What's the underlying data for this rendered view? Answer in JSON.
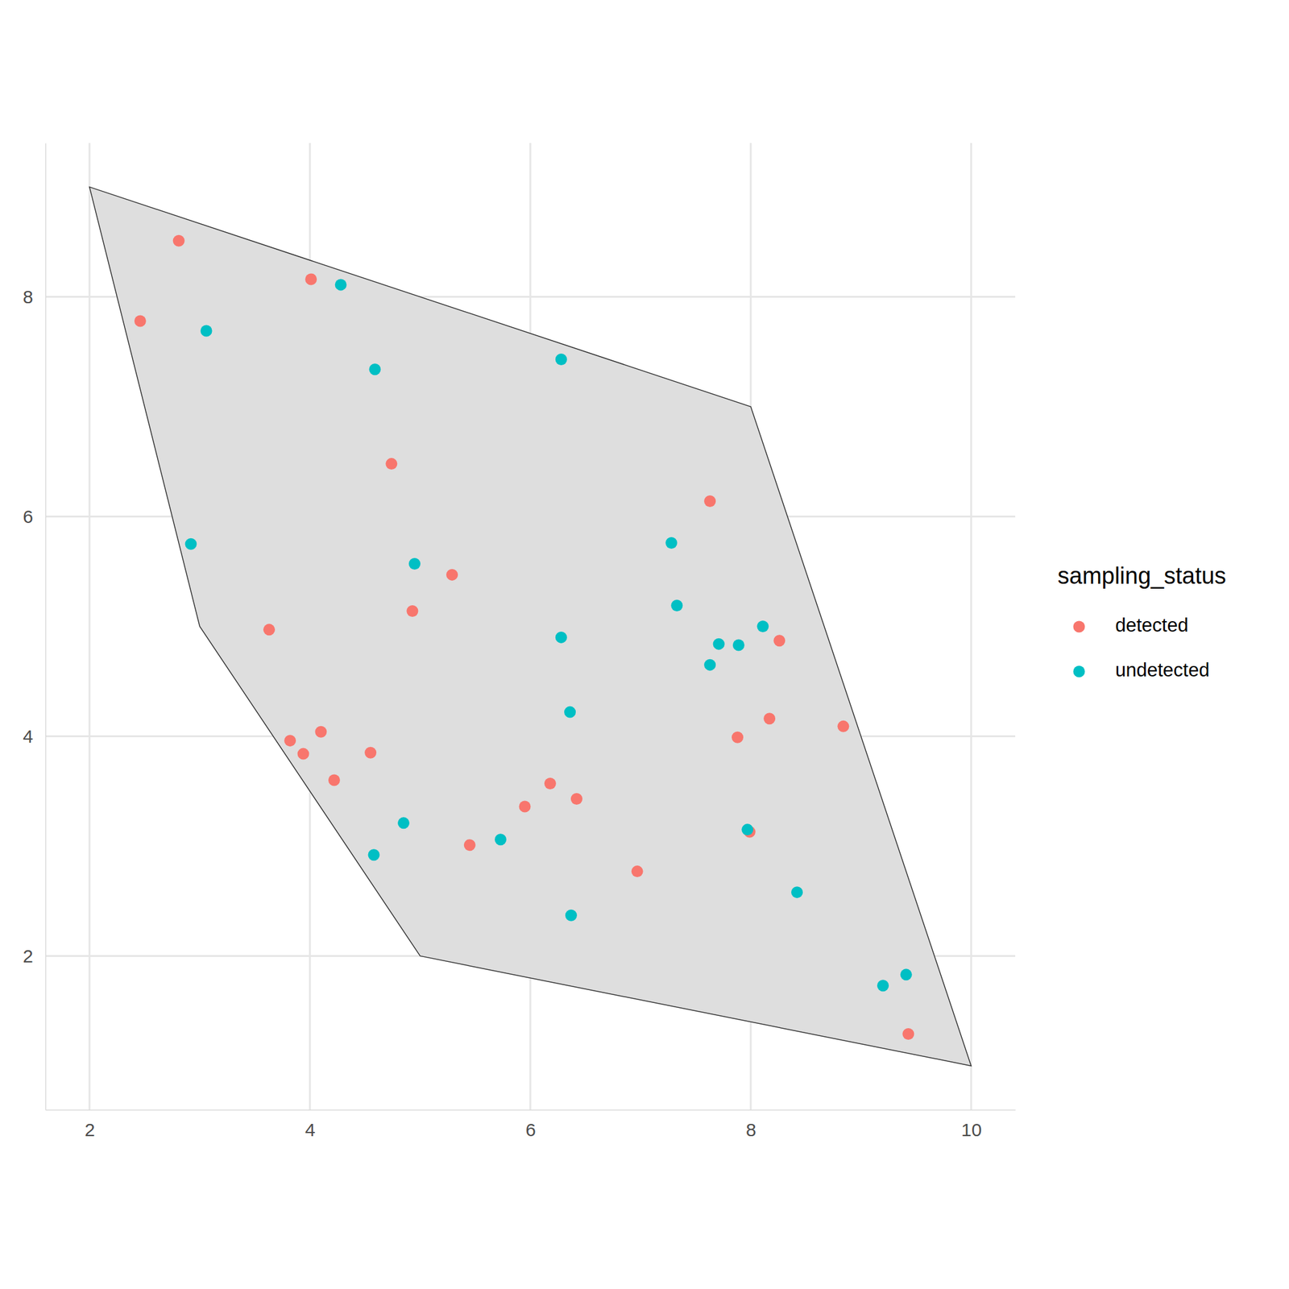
{
  "chart_data": {
    "type": "scatter",
    "legend_title": "sampling_status",
    "legend": "right",
    "grid": true,
    "xlim": [
      1.6,
      10.4
    ],
    "xticks": [
      2,
      4,
      6,
      8,
      10
    ],
    "ylim": [
      0.6,
      9.4
    ],
    "yticks": [
      2,
      4,
      6,
      8
    ],
    "polygon": {
      "x": [
        2,
        8,
        10,
        5,
        3
      ],
      "y": [
        9,
        7,
        1,
        2,
        5
      ]
    },
    "series": [
      {
        "name": "detected",
        "color": "#F8766D",
        "x": [
          2.81,
          2.46,
          4.01,
          4.74,
          7.63,
          5.29,
          4.93,
          3.63,
          8.26,
          8.17,
          8.84,
          7.88,
          4.1,
          3.82,
          3.94,
          4.55,
          4.22,
          6.18,
          6.42,
          5.95,
          5.45,
          7.99,
          6.97,
          9.43
        ],
        "values": [
          8.51,
          7.78,
          8.16,
          6.48,
          6.14,
          5.47,
          5.14,
          4.97,
          4.87,
          4.16,
          4.09,
          3.99,
          4.04,
          3.96,
          3.84,
          3.85,
          3.6,
          3.57,
          3.43,
          3.36,
          3.01,
          3.13,
          2.77,
          1.29
        ]
      },
      {
        "name": "undetected",
        "color": "#00BFC4",
        "x": [
          4.28,
          3.06,
          4.59,
          6.28,
          2.92,
          4.95,
          7.28,
          7.33,
          6.28,
          8.11,
          7.71,
          7.89,
          7.63,
          6.36,
          4.85,
          5.73,
          4.58,
          7.97,
          8.42,
          6.37,
          9.2,
          9.41
        ],
        "values": [
          8.11,
          7.69,
          7.34,
          7.43,
          5.75,
          5.57,
          5.76,
          5.19,
          4.9,
          5.0,
          4.84,
          4.83,
          4.65,
          4.22,
          3.21,
          3.06,
          2.92,
          3.15,
          2.58,
          2.37,
          1.73,
          1.83
        ]
      }
    ]
  }
}
